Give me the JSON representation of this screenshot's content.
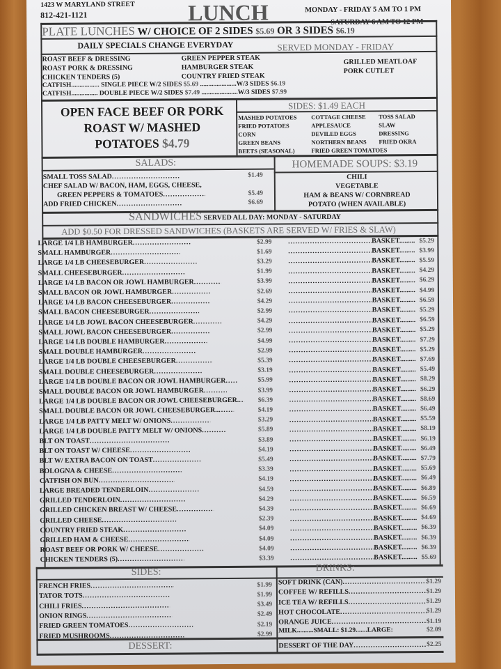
{
  "header": {
    "address": "1423 W MARYLAND STREET",
    "phone": "812-421-1121",
    "title": "LUNCH",
    "hours_weekday": "MONDAY - FRIDAY 5 AM TO 1 PM",
    "hours_saturday": "SATURDAY 6 AM TO 12 PM"
  },
  "plate": {
    "title": "PLATE LUNCHES",
    "choice2": "W/ CHOICE OF 2 SIDES",
    "price2": "$5.69",
    "or3": "OR  3 SIDES",
    "price3": "$6.19",
    "specials": "DAILY SPECIALS CHANGE EVERYDAY",
    "served": "SERVED MONDAY - FRIDAY",
    "col1": [
      "ROAST BEEF & DRESSING",
      "ROAST PORK & DRESSING",
      "CHICKEN TENDERS (5)"
    ],
    "col2": [
      "GREEN PEPPER STEAK",
      "HAMBURGER STEAK",
      "COUNTRY FRIED STEAK"
    ],
    "col3": [
      "GRILLED MEATLOAF",
      "PORK CUTLET"
    ],
    "catfish": [
      {
        "name": "CATFISH.................",
        "desc": "SINGLE PIECE W/2 SIDES",
        "p2": "$5.69",
        "w3": "......................W/3 SIDES",
        "p3": "$6.19"
      },
      {
        "name": "CATFISH................",
        "desc": "DOUBLE PIECE W/2 SIDES",
        "p2": "$7.49",
        "w3": "......................W/3 SIDES",
        "p3": "$7.99"
      }
    ]
  },
  "open_face": {
    "line1": "OPEN FACE BEEF OR PORK",
    "line2": "ROAST W/ MASHED",
    "line3": "POTATOES",
    "price": "$4.79"
  },
  "sides_each": {
    "title": "SIDES: $1.49 EACH",
    "col1": [
      "MASHED POTATOES",
      "FRIED POTATOES",
      "CORN",
      "GREEN BEANS",
      "BEETS (SEASONAL)"
    ],
    "col2": [
      "COTTAGE CHEESE",
      "APPLESAUCE",
      "DEVILED EGGS",
      "NORTHERN BEANS",
      "FRIED GREEN TOMATOES"
    ],
    "col3": [
      "TOSS SALAD",
      "SLAW",
      "DRESSING",
      "FRIED OKRA"
    ]
  },
  "salads": {
    "title": "SALADS:",
    "items": [
      {
        "name": "SMALL TOSS SALAD",
        "price": "$1.49"
      },
      {
        "name": "CHEF SALAD W/ BACON, HAM, EGGS, CHEESE,",
        "price": ""
      },
      {
        "name": "GREEN PEPPERS & TOMATOES",
        "price": "$5.49"
      },
      {
        "name": "ADD FRIED CHICKEN",
        "price": "$6.69"
      }
    ]
  },
  "soups": {
    "title": "HOMEMADE SOUPS: $3.19",
    "items": [
      "CHILI",
      "VEGETABLE",
      "HAM & BEANS W/ CORNBREAD",
      "POTATO (WHEN AVAILABLE)"
    ]
  },
  "sandwiches": {
    "title": "SANDWICHES",
    "served": "SERVED ALL DAY: MONDAY - SATURDAY",
    "note": "ADD $0.50 FOR DRESSED SANDWICHES (BASKETS ARE SERVED W/ FRIES & SLAW)",
    "basket_label": "BASKET.........",
    "items": [
      [
        "LARGE 1/4 LB HAMBURGER",
        "$2.99",
        "$5.29"
      ],
      [
        "SMALL HAMBURGER",
        "$1.69",
        "$3.99"
      ],
      [
        "LARGE 1/4 LB CHEESEBURGER",
        "$3.29",
        "$5.59"
      ],
      [
        "SMALL CHEESEBURGER",
        "$1.99",
        "$4.29"
      ],
      [
        "LARGE 1/4 LB BACON OR JOWL HAMBURGER",
        "$3.99",
        "$6.29"
      ],
      [
        "SMALL BACON OR JOWL HAMBURGER",
        "$2.69",
        "$4.99"
      ],
      [
        "LARGE 1/4 LB BACON CHEESEBURGER",
        "$4.29",
        "$6.59"
      ],
      [
        "SMALL BACON CHEESEBURGER",
        "$2.99",
        "$5.29"
      ],
      [
        "LARGE 1/4 LB JOWL BACON CHEESEBURGER",
        "$4.29",
        "$6.59"
      ],
      [
        "SMALL JOWL BACON CHEESEBURGER",
        "$2.99",
        "$5.29"
      ],
      [
        "LARGE 1/4 LB DOUBLE HAMBURGER",
        "$4.99",
        "$7.29"
      ],
      [
        "SMALL DOUBLE HAMBURGER",
        "$2.99",
        "$5.29"
      ],
      [
        "LARGE 1/4 LB DOUBLE CHEESEBURGER",
        "$5.39",
        "$7.69"
      ],
      [
        "SMALL DOUBLE CHEESEBURGER",
        "$3.19",
        "$5.49"
      ],
      [
        "LARGE 1/4 LB DOUBLE BACON OR JOWL HAMBURGER",
        "$5.99",
        "$8.29"
      ],
      [
        "SMALL DOUBLE BACON OR JOWL HAMBURGER",
        "$3.99",
        "$6.29"
      ],
      [
        "LARGE 1/4 LB DOUBLE BACON OR JOWL CHEESEBURGER.",
        "$6.39",
        "$8.69"
      ],
      [
        "SMALL DOUBLE BACON OR JOWL CHEESEBURGER..",
        "$4.19",
        "$6.49"
      ],
      [
        "LARGE 1/4 LB PATTY MELT W/ ONIONS",
        "$3.29",
        "$5.59"
      ],
      [
        "LARGE 1/4 LB DOUBLE PATTY MELT W/ ONIONS",
        "$5.89",
        "$8.19"
      ],
      [
        "BLT ON TOAST",
        "$3.89",
        "$6.19"
      ],
      [
        "BLT ON TOAST W/ CHEESE",
        "$4.19",
        "$6.49"
      ],
      [
        "BLT W/ EXTRA BACON ON TOAST",
        "$5.49",
        "$7.79"
      ],
      [
        "BOLOGNA & CHEESE",
        "$3.39",
        "$5.69"
      ],
      [
        "CATFISH ON BUN",
        "$4.19",
        "$6.49"
      ],
      [
        "LARGE BREADED TENDERLOIN",
        "$4.59",
        "$6.89"
      ],
      [
        "GRILLED TENDERLOIN",
        "$4.29",
        "$6.59"
      ],
      [
        "GRILLED CHICKEN BREAST W/ CHEESE",
        "$4.39",
        "$6.69"
      ],
      [
        "GRILLED CHEESE",
        "$2.39",
        "$4.69"
      ],
      [
        "COUNTRY FRIED STEAK",
        "$4.09",
        "$6.39"
      ],
      [
        "GRILLED HAM & CHEESE",
        "$4.09",
        "$6.39"
      ],
      [
        "ROAST BEEF OR PORK W/ CHEESE",
        "$4.09",
        "$6.39"
      ],
      [
        "CHICKEN TENDERS (5)",
        "$3.39",
        "$5.69"
      ]
    ]
  },
  "sides": {
    "title": "SIDES:",
    "items": [
      [
        "FRENCH FRIES",
        "$1.99"
      ],
      [
        "TATOR TOTS",
        "$1.99"
      ],
      [
        "CHILI FRIES",
        "$3.49"
      ],
      [
        "ONION RINGS",
        "$2.49"
      ],
      [
        "FRIED GREEN TOMATOES",
        "$2.19"
      ],
      [
        "FRIED MUSHROOMS",
        "$2.99"
      ]
    ]
  },
  "drinks": {
    "title": "DRINKS:",
    "items": [
      [
        "SOFT DRINK (CAN)",
        "$1.29"
      ],
      [
        "COFFEE W/ REFILLS",
        "$1.29"
      ],
      [
        "ICE TEA W/ REFILLS",
        "$1.29"
      ],
      [
        "HOT CHOCOLATE",
        "$1.29"
      ],
      [
        "ORANGE JUICE",
        "$1.19"
      ]
    ],
    "milk": "MILK..........SMALL: $1.29.......LARGE:",
    "milk_large": "$2.09"
  },
  "dessert": {
    "title": "DESSERT:",
    "item": "DESSERT OF THE DAY",
    "price": "$2.25"
  }
}
